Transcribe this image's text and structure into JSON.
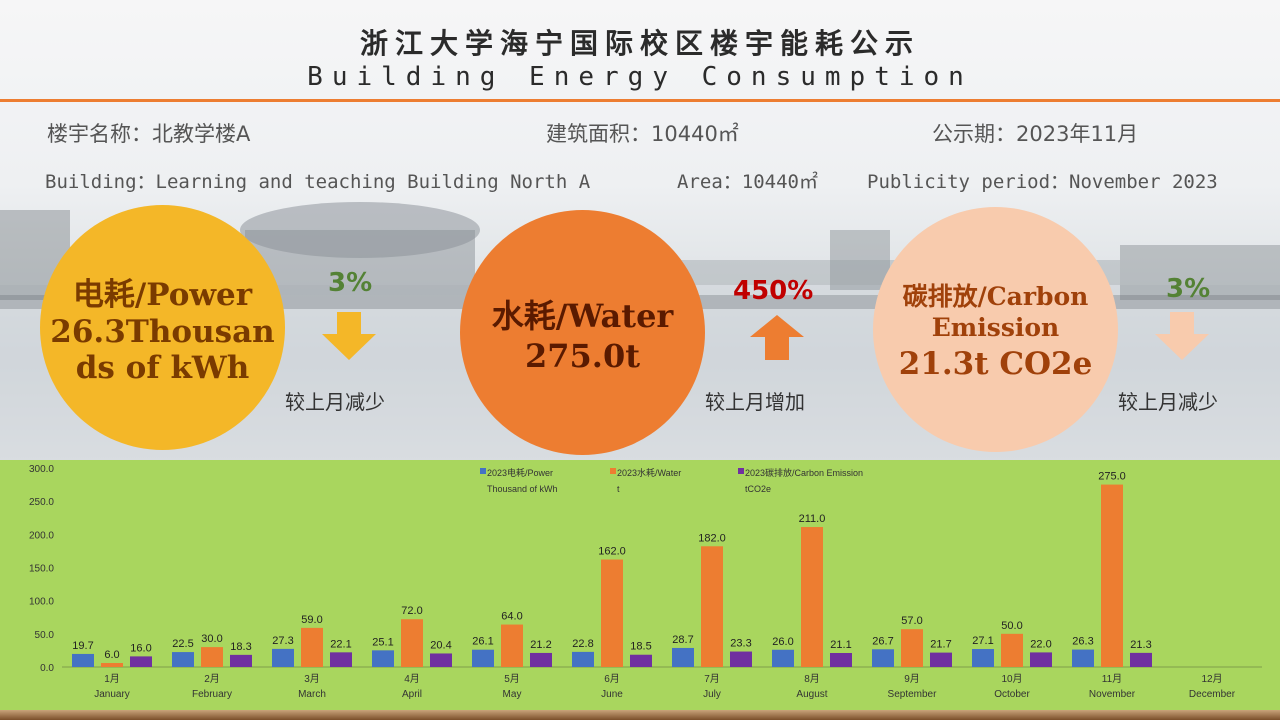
{
  "header": {
    "title_cn": "浙江大学海宁国际校区楼宇能耗公示",
    "title_en": "Building Energy Consumption"
  },
  "info": {
    "building_cn": "楼宇名称：北教学楼A",
    "area_cn": "建筑面积：10440㎡",
    "period_cn": "公示期：2023年11月",
    "building_en": "Building：Learning and teaching Building North A",
    "area_en": "Area：10440㎡",
    "period_en": "Publicity period：November 2023"
  },
  "cards": {
    "power": {
      "line1": "电耗/Power",
      "line2": "26.3Thousan",
      "line3": "ds of kWh",
      "change": "3%",
      "direction": "down",
      "note": "较上月减少",
      "color": "#f4b728"
    },
    "water": {
      "line1": "水耗/Water",
      "line2": "275.0t",
      "change": "450%",
      "direction": "up",
      "note": "较上月增加",
      "color": "#ed7d31"
    },
    "carbon": {
      "line1": "碳排放/Carbon",
      "line2": "Emission",
      "line3": "21.3t CO2e",
      "change": "3%",
      "direction": "down",
      "note": "较上月减少",
      "color": "#f8cbad"
    }
  },
  "colors": {
    "power": "#4472c4",
    "water": "#ed7d31",
    "carbon": "#7030a0",
    "accent": "#ed7d31",
    "green_text": "#548235",
    "red_text": "#c00000",
    "chart_bg": "#a9d65e"
  },
  "chart_data": {
    "type": "bar",
    "categories": [
      [
        "1月",
        "January"
      ],
      [
        "2月",
        "February"
      ],
      [
        "3月",
        "March"
      ],
      [
        "4月",
        "April"
      ],
      [
        "5月",
        "May"
      ],
      [
        "6月",
        "June"
      ],
      [
        "7月",
        "July"
      ],
      [
        "8月",
        "August"
      ],
      [
        "9月",
        "September"
      ],
      [
        "10月",
        "October"
      ],
      [
        "11月",
        "November"
      ],
      [
        "12月",
        "December"
      ]
    ],
    "series": [
      {
        "name": "2023电耗/Power Thousand of kWh",
        "legend_lines": [
          "2023电耗/Power",
          "Thousand of kWh"
        ],
        "values": [
          19.7,
          22.5,
          27.3,
          25.1,
          26.1,
          22.8,
          28.7,
          26.0,
          26.7,
          27.1,
          26.3,
          null
        ]
      },
      {
        "name": "2023水耗/Water t",
        "legend_lines": [
          "2023水耗/Water",
          "t"
        ],
        "values": [
          6.0,
          30.0,
          59.0,
          72.0,
          64.0,
          162.0,
          182.0,
          211.0,
          57.0,
          50.0,
          275.0,
          null
        ]
      },
      {
        "name": "2023碳排放/Carbon Emission tCO2e",
        "legend_lines": [
          "2023碳排放/Carbon Emission",
          "tCO2e"
        ],
        "values": [
          16.0,
          18.3,
          22.1,
          20.4,
          21.2,
          18.5,
          23.3,
          21.1,
          21.7,
          22.0,
          21.3,
          null
        ]
      }
    ],
    "ylim": [
      0,
      300
    ],
    "yticks": [
      "0.0",
      "50.0",
      "100.0",
      "150.0",
      "200.0",
      "250.0",
      "300.0"
    ],
    "legend_position": "top"
  }
}
